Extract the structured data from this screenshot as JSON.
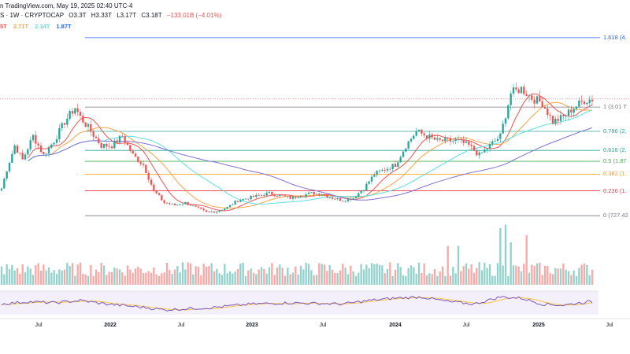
{
  "header": {
    "source": "n TradingView.com, May 19, 2025 02:40 UTC-4",
    "symbol": "S · 1W · CRYPTOCAP",
    "open": "O3.3T",
    "high": "H3.33T",
    "low": "L3.17T",
    "close": "C3.18T",
    "change": "−133.01B (−4.01%)"
  },
  "ma_values": [
    "5T",
    "2.71T",
    "2.34T",
    "1.87T"
  ],
  "colors": {
    "up": "#26a69a",
    "down": "#ef5350",
    "ma_fast": "#ef5350",
    "ma_mid": "#f5a54a",
    "ma_slow": "#5ce1e6",
    "ma_long": "#7e71d8",
    "rsi": "#7e57c2",
    "rsi_ma": "#f5c542"
  },
  "chart_data": {
    "type": "candlestick",
    "x_axis_labels": [
      "Jul",
      "2022",
      "Jul",
      "2023",
      "Jul",
      "2024",
      "Jul",
      "2025",
      "Jul"
    ],
    "y_unit": "T",
    "ylim": [
      0.3,
      4.6
    ],
    "fib_levels": [
      {
        "label": "1.618 (4.",
        "ratio": 1.618,
        "value": 4.47,
        "color": "#2962ff"
      },
      {
        "label": "1 (3.01 T",
        "ratio": 1,
        "value": 3.01,
        "color": "#787b86"
      },
      {
        "label": "0.786 (2.",
        "ratio": 0.786,
        "value": 2.5,
        "color": "#26a69a"
      },
      {
        "label": "0.618 (2.",
        "ratio": 0.618,
        "value": 2.1,
        "color": "#26a69a"
      },
      {
        "label": "0.5 (1.87",
        "ratio": 0.5,
        "value": 1.87,
        "color": "#4caf50"
      },
      {
        "label": "0.382 (1.",
        "ratio": 0.382,
        "value": 1.6,
        "color": "#ff9800"
      },
      {
        "label": "0.236 (1.",
        "ratio": 0.236,
        "value": 1.25,
        "color": "#f23645"
      },
      {
        "label": "0 (727.42",
        "ratio": 0,
        "value": 0.727,
        "color": "#787b86"
      }
    ],
    "price_anchors": [
      [
        0,
        1.3
      ],
      [
        2,
        1.7
      ],
      [
        5,
        2.2
      ],
      [
        8,
        1.9
      ],
      [
        12,
        2.4
      ],
      [
        16,
        2.0
      ],
      [
        20,
        2.3
      ],
      [
        24,
        2.7
      ],
      [
        28,
        3.0
      ],
      [
        30,
        2.8
      ],
      [
        34,
        2.5
      ],
      [
        38,
        2.2
      ],
      [
        42,
        2.2
      ],
      [
        46,
        2.4
      ],
      [
        50,
        2.0
      ],
      [
        54,
        1.8
      ],
      [
        58,
        1.25
      ],
      [
        62,
        1.0
      ],
      [
        66,
        0.95
      ],
      [
        70,
        1.0
      ],
      [
        74,
        0.9
      ],
      [
        78,
        0.8
      ],
      [
        82,
        0.82
      ],
      [
        86,
        0.9
      ],
      [
        90,
        1.05
      ],
      [
        94,
        1.1
      ],
      [
        98,
        1.15
      ],
      [
        102,
        1.2
      ],
      [
        106,
        1.15
      ],
      [
        110,
        1.1
      ],
      [
        114,
        1.15
      ],
      [
        118,
        1.2
      ],
      [
        122,
        1.18
      ],
      [
        126,
        1.1
      ],
      [
        130,
        1.05
      ],
      [
        134,
        1.1
      ],
      [
        138,
        1.3
      ],
      [
        142,
        1.6
      ],
      [
        146,
        1.7
      ],
      [
        150,
        1.8
      ],
      [
        154,
        2.2
      ],
      [
        158,
        2.5
      ],
      [
        162,
        2.4
      ],
      [
        166,
        2.3
      ],
      [
        170,
        2.3
      ],
      [
        174,
        2.3
      ],
      [
        178,
        2.2
      ],
      [
        182,
        2.0
      ],
      [
        186,
        2.2
      ],
      [
        190,
        2.4
      ],
      [
        194,
        3.3
      ],
      [
        198,
        3.4
      ],
      [
        202,
        3.2
      ],
      [
        206,
        3.1
      ],
      [
        210,
        2.7
      ],
      [
        214,
        2.8
      ],
      [
        218,
        3.0
      ],
      [
        222,
        3.15
      ],
      [
        225,
        3.18
      ]
    ],
    "volume_spikes": {
      "170": 0.55,
      "174": 0.55,
      "190": 0.8,
      "192": 0.85,
      "194": 0.6,
      "200": 0.7
    },
    "rsi_anchors": [
      [
        0,
        0.45
      ],
      [
        10,
        0.55
      ],
      [
        20,
        0.5
      ],
      [
        30,
        0.6
      ],
      [
        40,
        0.45
      ],
      [
        55,
        0.3
      ],
      [
        62,
        0.2
      ],
      [
        70,
        0.25
      ],
      [
        80,
        0.3
      ],
      [
        95,
        0.45
      ],
      [
        110,
        0.5
      ],
      [
        130,
        0.45
      ],
      [
        140,
        0.6
      ],
      [
        150,
        0.7
      ],
      [
        160,
        0.75
      ],
      [
        170,
        0.55
      ],
      [
        180,
        0.45
      ],
      [
        190,
        0.75
      ],
      [
        198,
        0.7
      ],
      [
        206,
        0.45
      ],
      [
        214,
        0.4
      ],
      [
        220,
        0.5
      ],
      [
        225,
        0.55
      ]
    ]
  }
}
